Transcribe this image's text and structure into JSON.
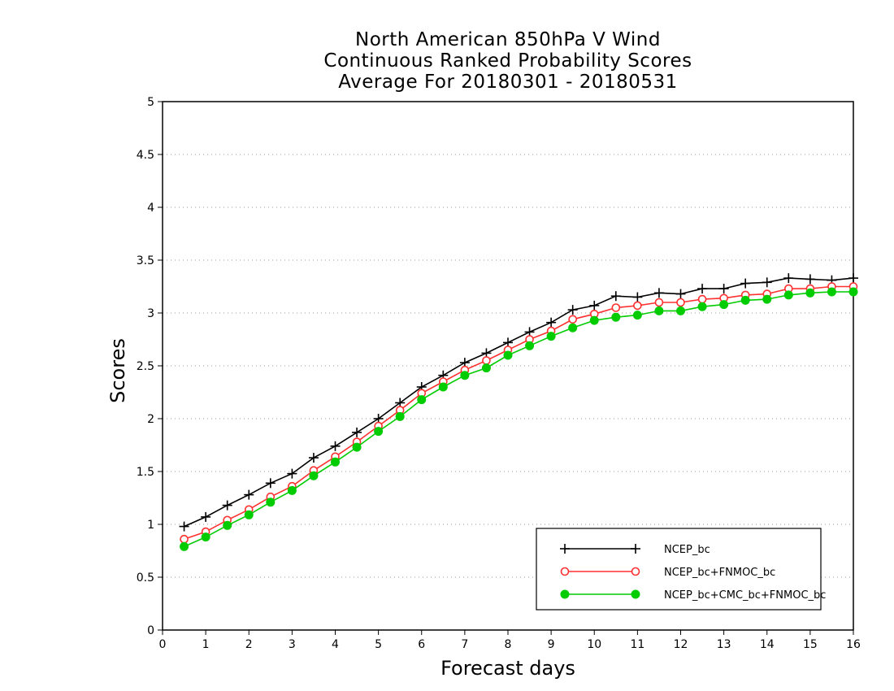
{
  "chart_data": {
    "type": "line",
    "title": [
      "North American 850hPa V Wind",
      "Continuous Ranked Probability Scores",
      "Average For 20180301 - 20180531"
    ],
    "xlabel": "Forecast days",
    "ylabel": "Scores",
    "xlim": [
      0,
      16
    ],
    "ylim": [
      0,
      5
    ],
    "xticks": [
      "0",
      "1",
      "2",
      "3",
      "4",
      "5",
      "6",
      "7",
      "8",
      "9",
      "10",
      "11",
      "12",
      "13",
      "14",
      "15",
      "16"
    ],
    "yticks": [
      "0",
      "0.5",
      "1",
      "1.5",
      "2",
      "2.5",
      "3",
      "3.5",
      "4",
      "4.5",
      "5"
    ],
    "grid": true,
    "legend_position": "bottom-right",
    "x": [
      0.5,
      1,
      1.5,
      2,
      2.5,
      3,
      3.5,
      4,
      4.5,
      5,
      5.5,
      6,
      6.5,
      7,
      7.5,
      8,
      8.5,
      9,
      9.5,
      10,
      10.5,
      11,
      11.5,
      12,
      12.5,
      13,
      13.5,
      14,
      14.5,
      15,
      15.5,
      16
    ],
    "series": [
      {
        "name": "NCEP_bc",
        "color": "#000000",
        "marker": "plus",
        "values": [
          0.98,
          1.07,
          1.18,
          1.28,
          1.39,
          1.48,
          1.63,
          1.74,
          1.87,
          2.0,
          2.15,
          2.3,
          2.41,
          2.53,
          2.62,
          2.72,
          2.82,
          2.91,
          3.03,
          3.07,
          3.16,
          3.15,
          3.19,
          3.18,
          3.23,
          3.23,
          3.28,
          3.29,
          3.33,
          3.32,
          3.31,
          3.33
        ]
      },
      {
        "name": "NCEP_bc+FNMOC_bc",
        "color": "#ff3030",
        "marker": "open-circle",
        "values": [
          0.86,
          0.93,
          1.04,
          1.14,
          1.26,
          1.36,
          1.51,
          1.64,
          1.78,
          1.93,
          2.08,
          2.24,
          2.35,
          2.46,
          2.55,
          2.65,
          2.75,
          2.83,
          2.94,
          2.99,
          3.05,
          3.07,
          3.1,
          3.1,
          3.13,
          3.14,
          3.17,
          3.18,
          3.23,
          3.23,
          3.25,
          3.25
        ]
      },
      {
        "name": "NCEP_bc+CMC_bc+FNMOC_bc",
        "color": "#00cc00",
        "marker": "filled-circle",
        "values": [
          0.79,
          0.88,
          0.99,
          1.09,
          1.21,
          1.32,
          1.46,
          1.59,
          1.73,
          1.88,
          2.02,
          2.18,
          2.3,
          2.41,
          2.48,
          2.6,
          2.69,
          2.78,
          2.86,
          2.93,
          2.96,
          2.98,
          3.02,
          3.02,
          3.06,
          3.08,
          3.12,
          3.13,
          3.17,
          3.19,
          3.2,
          3.2
        ]
      }
    ]
  }
}
